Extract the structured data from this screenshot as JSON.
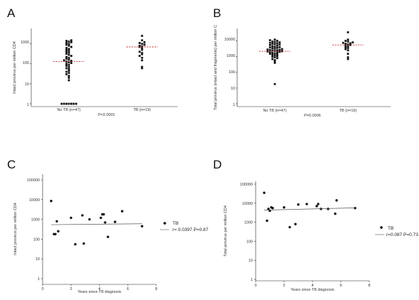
{
  "chart_data": [
    {
      "panel": "A",
      "type": "scatter",
      "ylabel": "Intact provirus per million CD4",
      "yscale": "log",
      "ylim": [
        1,
        5000
      ],
      "yticks": [
        "1",
        "10",
        "100",
        "1000"
      ],
      "categories": [
        "No TB (n=47)",
        "TB (n=19)"
      ],
      "pvalue": "P<0.0001",
      "median_marks": [
        130,
        700
      ],
      "series": [
        {
          "values": [
            1,
            1,
            1,
            1,
            1,
            1,
            1,
            15,
            20,
            25,
            30,
            35,
            40,
            45,
            55,
            60,
            70,
            80,
            90,
            100,
            110,
            120,
            130,
            140,
            150,
            160,
            180,
            200,
            220,
            250,
            280,
            320,
            360,
            400,
            450,
            500,
            560,
            620,
            700,
            800,
            900,
            1000,
            1100,
            1200,
            1300,
            1400,
            1500
          ]
        },
        {
          "values": [
            60,
            70,
            150,
            200,
            250,
            300,
            350,
            400,
            500,
            600,
            700,
            750,
            800,
            900,
            1000,
            1100,
            1200,
            1500,
            2500
          ]
        }
      ]
    },
    {
      "panel": "B",
      "type": "scatter",
      "ylabel": "Total provirus (intact and fragments) per million C",
      "yscale": "log",
      "ylim": [
        1,
        50000
      ],
      "yticks": [
        "1",
        "10",
        "100",
        "1000",
        "10000"
      ],
      "categories": [
        "No TB (n=47)",
        "TB (n=19)"
      ],
      "pvalue": "P=0.0006",
      "median_marks": [
        2200,
        5500
      ],
      "series": [
        {
          "values": [
            18,
            400,
            500,
            600,
            700,
            800,
            900,
            1000,
            1100,
            1200,
            1300,
            1400,
            1500,
            1600,
            1700,
            1800,
            1900,
            2000,
            2100,
            2200,
            2300,
            2400,
            2500,
            2600,
            2700,
            2800,
            3000,
            3200,
            3400,
            3600,
            3800,
            4000,
            4300,
            4600,
            5000,
            5400,
            5800,
            6200,
            6600,
            7000,
            7500,
            8000,
            8500,
            9000,
            10000,
            11000,
            12000
          ]
        },
        {
          "values": [
            700,
            900,
            1500,
            2500,
            3000,
            3500,
            4000,
            4500,
            5000,
            5500,
            6000,
            6500,
            7000,
            7500,
            8000,
            9000,
            10000,
            12000,
            35000
          ]
        }
      ]
    },
    {
      "panel": "C",
      "type": "scatter",
      "ylabel": "Intact provirus per million CD4",
      "xlabel": "Years since TB diagnosis",
      "yscale": "log",
      "ylim": [
        1,
        100000
      ],
      "yticks": [
        "1",
        "10",
        "100",
        "1000",
        "10000",
        "100000"
      ],
      "xlim": [
        0,
        8
      ],
      "xticks": [
        "0",
        "2",
        "4",
        "6",
        "8"
      ],
      "legend": {
        "marker_label": "TB",
        "stats": "r= 0.0397 P=0.87"
      },
      "series": [
        {
          "name": "TB",
          "x": [
            0.6,
            0.8,
            0.9,
            1.0,
            1.1,
            2.0,
            2.3,
            2.8,
            2.9,
            3.3,
            4.1,
            4.2,
            4.3,
            4.4,
            4.6,
            5.1,
            5.6,
            7.0
          ],
          "y": [
            8500,
            180,
            180,
            800,
            250,
            1200,
            55,
            1600,
            60,
            1000,
            1200,
            1800,
            1800,
            700,
            130,
            750,
            2600,
            450
          ]
        }
      ],
      "fit": {
        "x": [
          0.6,
          7.0
        ],
        "y": [
          540,
          600
        ]
      }
    },
    {
      "panel": "D",
      "type": "scatter",
      "ylabel": "Total provirus per million CD4",
      "xlabel": "Years since TB diagnosis",
      "yscale": "log",
      "ylim": [
        1,
        100000
      ],
      "yticks": [
        "1",
        "10",
        "100",
        "1000",
        "10000",
        "100000"
      ],
      "xlim": [
        0,
        8
      ],
      "xticks": [
        "0",
        "2",
        "4",
        "6",
        "8"
      ],
      "legend": {
        "marker_label": "TB",
        "stats": "r=0.087 P=0.73"
      },
      "series": [
        {
          "name": "TB",
          "x": [
            0.6,
            0.8,
            0.9,
            1.0,
            1.1,
            1.2,
            2.0,
            2.4,
            2.8,
            3.0,
            3.6,
            4.3,
            4.4,
            4.6,
            5.1,
            5.6,
            5.7,
            7.0
          ],
          "y": [
            35000,
            1200,
            5000,
            4000,
            6000,
            5500,
            6000,
            550,
            800,
            8500,
            9000,
            7000,
            9000,
            5000,
            5000,
            2800,
            14000,
            5500
          ]
        }
      ],
      "fit": {
        "x": [
          0.6,
          7.0
        ],
        "y": [
          4300,
          5700
        ]
      }
    }
  ]
}
